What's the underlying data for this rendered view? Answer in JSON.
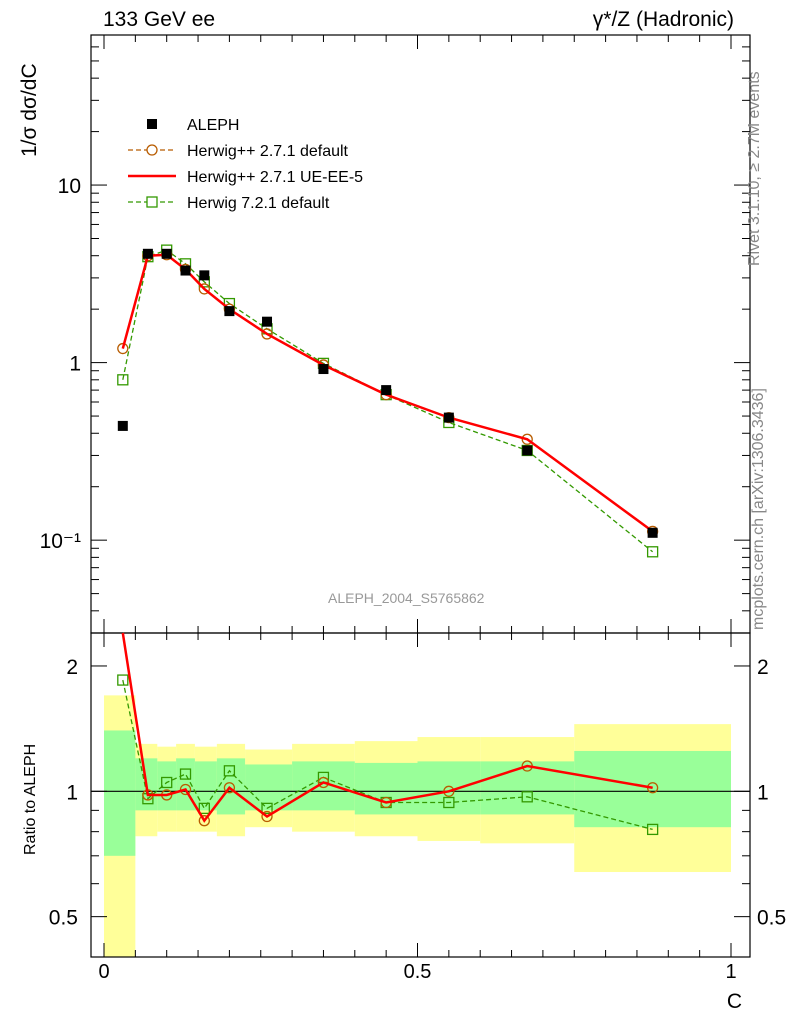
{
  "header": {
    "left": "133 GeV ee",
    "right": "γ*/Z (Hadronic)"
  },
  "side_texts": {
    "rivet": "Rivet 3.1.10, ≥ 2.7M events",
    "mcplots": "mcplots.cern.ch [arXiv:1306.3436]"
  },
  "analysis_label": "ALEPH_2004_S5765862",
  "colors": {
    "data": "#000000",
    "herwig_pp_default": "#b85c00",
    "herwig_pp_ue": "#ff0000",
    "herwig7": "#339900",
    "band_inner": "#99ff99",
    "band_outer": "#ffff99",
    "analysis_label": "#999999"
  },
  "chart_data": [
    {
      "type": "scatter",
      "ylabel": "1/σ dσ/dC",
      "yscale": "log",
      "xlim": [
        0,
        1
      ],
      "ylim": [
        0.03,
        70
      ],
      "xticks": [
        0,
        0.5,
        1
      ],
      "yticks": [
        0.1,
        1,
        10
      ],
      "ytick_labels": [
        "10⁻¹",
        "1",
        "10"
      ],
      "x": [
        0.03,
        0.07,
        0.1,
        0.13,
        0.16,
        0.2,
        0.26,
        0.35,
        0.45,
        0.55,
        0.675,
        0.875
      ],
      "legend": {
        "placement": "top-left",
        "entries": [
          "ALEPH",
          "Herwig++ 2.7.1 default",
          "Herwig++ 2.7.1 UE-EE-5",
          "Herwig 7.2.1 default"
        ]
      },
      "series": [
        {
          "name": "ALEPH",
          "marker": "filled-square",
          "values": [
            0.44,
            4.1,
            4.1,
            3.3,
            3.1,
            1.95,
            1.7,
            0.92,
            0.7,
            0.49,
            0.32,
            0.11
          ]
        },
        {
          "name": "Herwig++ 2.7.1 default",
          "marker": "open-circle",
          "line": "dashed",
          "values": [
            1.2,
            4.0,
            4.05,
            3.35,
            2.6,
            2.0,
            1.45,
            0.97,
            0.66,
            0.49,
            0.37,
            0.112
          ]
        },
        {
          "name": "Herwig++ 2.7.1 UE-EE-5",
          "marker": "none",
          "line": "solid",
          "values": [
            1.2,
            4.0,
            4.05,
            3.35,
            2.6,
            2.0,
            1.45,
            0.97,
            0.66,
            0.49,
            0.37,
            0.112
          ]
        },
        {
          "name": "Herwig 7.2.1 default",
          "marker": "open-square",
          "line": "dashed",
          "values": [
            0.8,
            3.95,
            4.3,
            3.6,
            2.85,
            2.15,
            1.55,
            0.99,
            0.66,
            0.46,
            0.32,
            0.086
          ]
        }
      ]
    },
    {
      "type": "line",
      "ylabel": "Ratio to ALEPH",
      "xlabel": "C",
      "yscale": "log",
      "xlim": [
        0,
        1
      ],
      "ylim": [
        0.4,
        2.4
      ],
      "xticks": [
        0,
        0.5,
        1
      ],
      "xtick_labels": [
        "0",
        "0.5",
        "1"
      ],
      "yticks": [
        0.5,
        1,
        2
      ],
      "ytick_labels": [
        "0.5",
        "1",
        "2"
      ],
      "x": [
        0.03,
        0.07,
        0.1,
        0.13,
        0.16,
        0.2,
        0.26,
        0.35,
        0.45,
        0.55,
        0.675,
        0.875
      ],
      "series": [
        {
          "name": "Herwig++ 2.7.1 default",
          "values": [
            2.7,
            0.98,
            0.98,
            1.01,
            0.85,
            1.02,
            0.87,
            1.05,
            0.94,
            1.0,
            1.15,
            1.02
          ]
        },
        {
          "name": "Herwig++ 2.7.1 UE-EE-5",
          "values": [
            2.7,
            0.98,
            0.98,
            1.01,
            0.85,
            1.02,
            0.87,
            1.05,
            0.94,
            1.0,
            1.15,
            1.02
          ]
        },
        {
          "name": "Herwig 7.2.1 default",
          "values": [
            1.85,
            0.96,
            1.05,
            1.1,
            0.91,
            1.12,
            0.91,
            1.08,
            0.94,
            0.94,
            0.97,
            0.81
          ]
        }
      ],
      "bands": {
        "edges": [
          0,
          0.05,
          0.085,
          0.115,
          0.145,
          0.18,
          0.225,
          0.3,
          0.4,
          0.5,
          0.6,
          0.75,
          1.0
        ],
        "inner": [
          [
            0.7,
            1.4
          ],
          [
            0.9,
            1.2
          ],
          [
            0.9,
            1.18
          ],
          [
            0.9,
            1.2
          ],
          [
            0.9,
            1.18
          ],
          [
            0.88,
            1.2
          ],
          [
            0.9,
            1.16
          ],
          [
            0.9,
            1.18
          ],
          [
            0.88,
            1.17
          ],
          [
            0.88,
            1.18
          ],
          [
            0.88,
            1.18
          ],
          [
            0.82,
            1.25
          ]
        ],
        "outer": [
          [
            0.35,
            1.7
          ],
          [
            0.78,
            1.3
          ],
          [
            0.8,
            1.28
          ],
          [
            0.8,
            1.3
          ],
          [
            0.8,
            1.28
          ],
          [
            0.78,
            1.3
          ],
          [
            0.82,
            1.26
          ],
          [
            0.8,
            1.3
          ],
          [
            0.78,
            1.32
          ],
          [
            0.76,
            1.35
          ],
          [
            0.75,
            1.35
          ],
          [
            0.64,
            1.45
          ]
        ]
      }
    }
  ]
}
